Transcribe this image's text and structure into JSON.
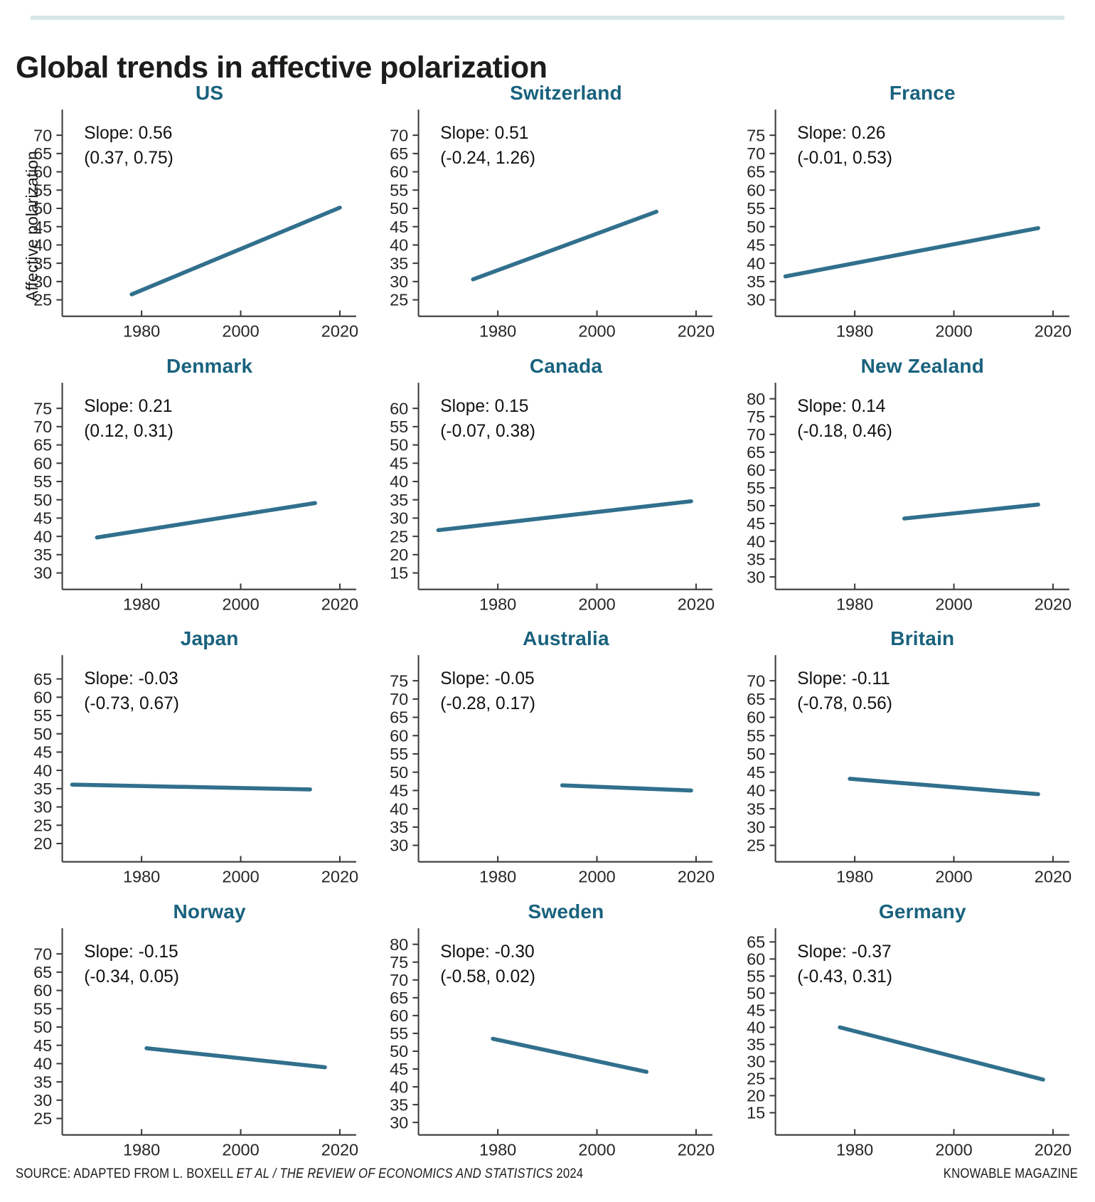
{
  "page": {
    "title": "Global trends in affective polarization",
    "y_axis_label": "Affective polarization"
  },
  "footer": {
    "left_prefix": "SOURCE: ADAPTED FROM L. BOXELL ",
    "left_italic": "ET AL / THE REVIEW OF ECONOMICS AND STATISTICS",
    "left_suffix": " 2024",
    "right": "KNOWABLE MAGAZINE"
  },
  "style": {
    "top_rule_color": "#d6e5e6",
    "title_color": "#1d1c1a",
    "country_title_color": "#19627e",
    "trend_line_color": "#31708d",
    "axis_color": "#3a3a3a",
    "tick_label_color": "#262626",
    "annotation_color": "#111111"
  },
  "axis": {
    "x_domain": [
      1964,
      2023
    ],
    "x_ticks": [
      1980,
      2000,
      2020
    ]
  },
  "chart_data": [
    {
      "type": "line",
      "title": "US",
      "slope_label": "Slope: 0.56",
      "ci_label": "(0.37, 0.75)",
      "slope": 0.56,
      "ci": [
        0.37,
        0.75
      ],
      "x": [
        1978,
        2020
      ],
      "y": [
        26.5,
        50.2
      ],
      "y_ticks": [
        25,
        30,
        35,
        40,
        45,
        50,
        55,
        60,
        65,
        70
      ],
      "y_domain": [
        20.5,
        77
      ]
    },
    {
      "type": "line",
      "title": "Switzerland",
      "slope_label": "Slope: 0.51",
      "ci_label": "(-0.24, 1.26)",
      "slope": 0.51,
      "ci": [
        -0.24,
        1.26
      ],
      "x": [
        1975,
        2012
      ],
      "y": [
        30.6,
        49.1
      ],
      "y_ticks": [
        25,
        30,
        35,
        40,
        45,
        50,
        55,
        60,
        65,
        70
      ],
      "y_domain": [
        20.5,
        77
      ]
    },
    {
      "type": "line",
      "title": "France",
      "slope_label": "Slope: 0.26",
      "ci_label": "(-0.01, 0.53)",
      "slope": 0.26,
      "ci": [
        -0.01,
        0.53
      ],
      "x": [
        1966,
        2017
      ],
      "y": [
        36.4,
        49.6
      ],
      "y_ticks": [
        30,
        35,
        40,
        45,
        50,
        55,
        60,
        65,
        70,
        75
      ],
      "y_domain": [
        25.5,
        82
      ]
    },
    {
      "type": "line",
      "title": "Denmark",
      "slope_label": "Slope: 0.21",
      "ci_label": "(0.12, 0.31)",
      "slope": 0.21,
      "ci": [
        0.12,
        0.31
      ],
      "x": [
        1971,
        2015
      ],
      "y": [
        39.7,
        49.1
      ],
      "y_ticks": [
        30,
        35,
        40,
        45,
        50,
        55,
        60,
        65,
        70,
        75
      ],
      "y_domain": [
        25.5,
        82
      ]
    },
    {
      "type": "line",
      "title": "Canada",
      "slope_label": "Slope: 0.15",
      "ci_label": "(-0.07, 0.38)",
      "slope": 0.15,
      "ci": [
        -0.07,
        0.38
      ],
      "x": [
        1968,
        2019
      ],
      "y": [
        26.7,
        34.6
      ],
      "y_ticks": [
        15,
        20,
        25,
        30,
        35,
        40,
        45,
        50,
        55,
        60
      ],
      "y_domain": [
        10.5,
        67
      ]
    },
    {
      "type": "line",
      "title": "New Zealand",
      "slope_label": "Slope: 0.14",
      "ci_label": "(-0.18, 0.46)",
      "slope": 0.14,
      "ci": [
        -0.18,
        0.46
      ],
      "x": [
        1990,
        2017
      ],
      "y": [
        46.4,
        50.3
      ],
      "y_ticks": [
        30,
        35,
        40,
        45,
        50,
        55,
        60,
        65,
        70,
        75,
        80
      ],
      "y_domain": [
        26.5,
        84.5
      ]
    },
    {
      "type": "line",
      "title": "Japan",
      "slope_label": "Slope: -0.03",
      "ci_label": "(-0.73, 0.67)",
      "slope": -0.03,
      "ci": [
        -0.73,
        0.67
      ],
      "x": [
        1966,
        2014
      ],
      "y": [
        36.1,
        34.8
      ],
      "y_ticks": [
        20,
        25,
        30,
        35,
        40,
        45,
        50,
        55,
        60,
        65
      ],
      "y_domain": [
        15,
        71.5
      ]
    },
    {
      "type": "line",
      "title": "Australia",
      "slope_label": "Slope: -0.05",
      "ci_label": "(-0.28, 0.17)",
      "slope": -0.05,
      "ci": [
        -0.28,
        0.17
      ],
      "x": [
        1993,
        2019
      ],
      "y": [
        46.4,
        45.0
      ],
      "y_ticks": [
        30,
        35,
        40,
        45,
        50,
        55,
        60,
        65,
        70,
        75
      ],
      "y_domain": [
        25.5,
        82
      ]
    },
    {
      "type": "line",
      "title": "Britain",
      "slope_label": "Slope: -0.11",
      "ci_label": "(-0.78, 0.56)",
      "slope": -0.11,
      "ci": [
        -0.78,
        0.56
      ],
      "x": [
        1979,
        2017
      ],
      "y": [
        43.2,
        39.0
      ],
      "y_ticks": [
        25,
        30,
        35,
        40,
        45,
        50,
        55,
        60,
        65,
        70
      ],
      "y_domain": [
        20.5,
        77
      ]
    },
    {
      "type": "line",
      "title": "Norway",
      "slope_label": "Slope: -0.15",
      "ci_label": "(-0.34, 0.05)",
      "slope": -0.15,
      "ci": [
        -0.34,
        0.05
      ],
      "x": [
        1981,
        2017
      ],
      "y": [
        44.2,
        39.0
      ],
      "y_ticks": [
        25,
        30,
        35,
        40,
        45,
        50,
        55,
        60,
        65,
        70
      ],
      "y_domain": [
        20.5,
        77
      ]
    },
    {
      "type": "line",
      "title": "Sweden",
      "slope_label": "Slope: -0.30",
      "ci_label": "(-0.58, 0.02)",
      "slope": -0.3,
      "ci": [
        -0.58,
        0.02
      ],
      "x": [
        1979,
        2010
      ],
      "y": [
        53.5,
        44.2
      ],
      "y_ticks": [
        30,
        35,
        40,
        45,
        50,
        55,
        60,
        65,
        70,
        75,
        80
      ],
      "y_domain": [
        26.5,
        84.5
      ]
    },
    {
      "type": "line",
      "title": "Germany",
      "slope_label": "Slope: -0.37",
      "ci_label": "(-0.43, 0.31)",
      "slope": -0.37,
      "ci": [
        -0.43,
        0.31
      ],
      "x": [
        1977,
        2018
      ],
      "y": [
        40.0,
        24.7
      ],
      "y_ticks": [
        15,
        20,
        25,
        30,
        35,
        40,
        45,
        50,
        55,
        60,
        65
      ],
      "y_domain": [
        8.5,
        69
      ]
    }
  ]
}
